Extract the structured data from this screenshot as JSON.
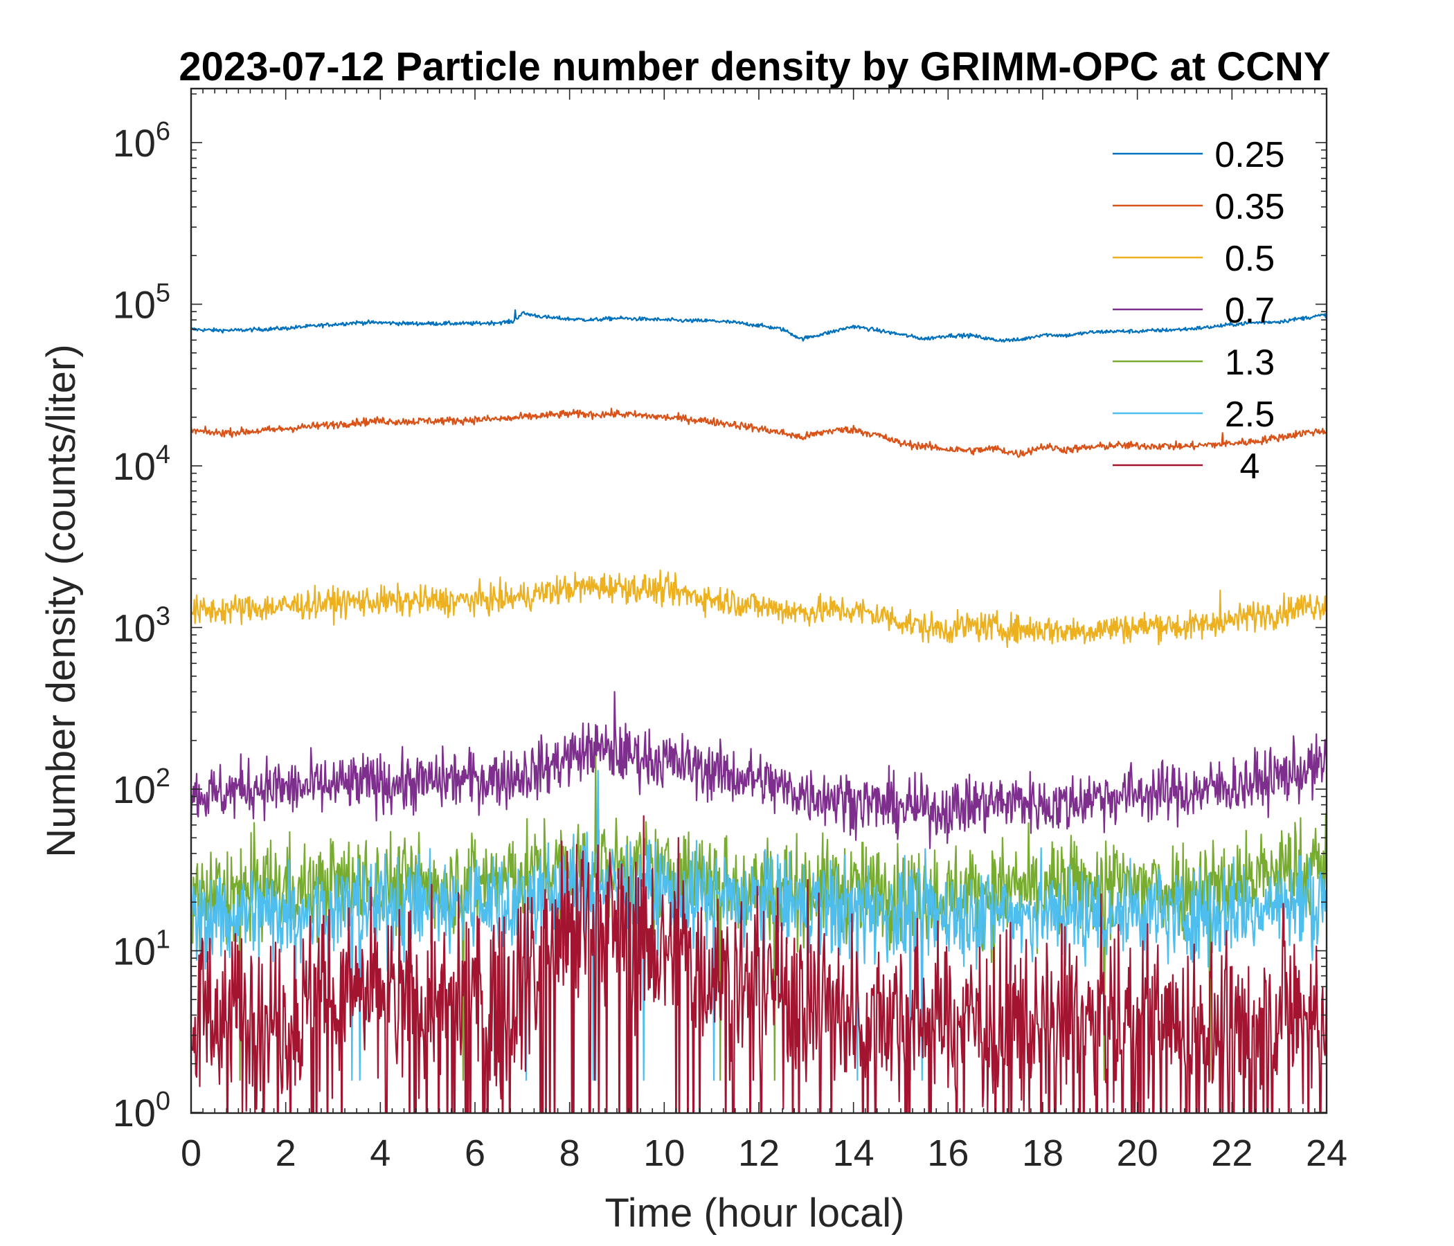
{
  "chart_data": {
    "type": "line",
    "title": "2023-07-12 Particle number density by GRIMM-OPC at CCNY",
    "xlabel": "Time (hour local)",
    "ylabel": "Number density (counts/liter)",
    "xlim": [
      0,
      24
    ],
    "ylim": [
      1,
      2000000
    ],
    "yscale": "log",
    "x_ticks": [
      0,
      2,
      4,
      6,
      8,
      10,
      12,
      14,
      16,
      18,
      20,
      22,
      24
    ],
    "y_ticks": [
      {
        "value": 1,
        "base": "10",
        "exp": "0"
      },
      {
        "value": 10,
        "base": "10",
        "exp": "1"
      },
      {
        "value": 100,
        "base": "10",
        "exp": "2"
      },
      {
        "value": 1000,
        "base": "10",
        "exp": "3"
      },
      {
        "value": 10000,
        "base": "10",
        "exp": "4"
      },
      {
        "value": 100000,
        "base": "10",
        "exp": "5"
      },
      {
        "value": 1000000,
        "base": "10",
        "exp": "6"
      }
    ],
    "grid": false,
    "legend_position": "top-right",
    "x": [
      0,
      0.5,
      1,
      1.5,
      2,
      2.5,
      3,
      3.5,
      4,
      4.5,
      5,
      5.5,
      6,
      6.5,
      6.8,
      7,
      7.5,
      8,
      8.5,
      9,
      9.5,
      10,
      10.5,
      11,
      11.5,
      12,
      12.5,
      12.9,
      13.5,
      14,
      14.5,
      15,
      15.5,
      16,
      16.5,
      17,
      17.5,
      18,
      18.5,
      19,
      19.5,
      20,
      20.5,
      21,
      21.5,
      22,
      22.5,
      23,
      23.5,
      24
    ],
    "series": [
      {
        "name": "0.25",
        "color": "#0072BD",
        "values": [
          70000,
          69000,
          69000,
          70000,
          71000,
          73000,
          75000,
          77000,
          77000,
          76000,
          76000,
          76000,
          76000,
          77000,
          78000,
          88000,
          83000,
          81000,
          80000,
          82000,
          81000,
          80000,
          79000,
          79000,
          77000,
          74000,
          70000,
          61000,
          67000,
          73000,
          69000,
          65000,
          61000,
          64000,
          64000,
          60000,
          60000,
          65000,
          64000,
          67000,
          68000,
          68000,
          69000,
          70000,
          72000,
          75000,
          77000,
          78000,
          82000,
          86000
        ]
      },
      {
        "name": "0.35",
        "color": "#D95319",
        "values": [
          16500,
          16000,
          16200,
          16500,
          17000,
          17500,
          18000,
          18600,
          19000,
          18800,
          19000,
          19000,
          19300,
          19500,
          19700,
          20000,
          20500,
          21000,
          20800,
          21000,
          20500,
          20000,
          19500,
          18800,
          18000,
          17000,
          16000,
          15000,
          16500,
          16800,
          15500,
          13800,
          13200,
          12700,
          12400,
          12800,
          11800,
          13200,
          12600,
          13000,
          13400,
          13300,
          13300,
          13200,
          13500,
          13800,
          14200,
          15000,
          16000,
          16500
        ]
      },
      {
        "name": "0.5",
        "color": "#EDB120",
        "values": [
          1250,
          1280,
          1300,
          1330,
          1350,
          1400,
          1420,
          1450,
          1450,
          1450,
          1460,
          1460,
          1480,
          1500,
          1520,
          1550,
          1650,
          1750,
          1780,
          1800,
          1750,
          1700,
          1600,
          1500,
          1450,
          1350,
          1300,
          1250,
          1280,
          1270,
          1200,
          1100,
          1000,
          980,
          1020,
          1000,
          970,
          980,
          950,
          960,
          1000,
          1000,
          1050,
          1000,
          1050,
          1100,
          1200,
          1250,
          1350,
          1400
        ]
      },
      {
        "name": "0.7",
        "color": "#7E2F8E",
        "values": [
          95,
          92,
          100,
          105,
          100,
          102,
          105,
          108,
          110,
          108,
          110,
          115,
          115,
          118,
          120,
          125,
          135,
          160,
          175,
          165,
          160,
          150,
          140,
          130,
          120,
          115,
          100,
          95,
          90,
          85,
          80,
          78,
          75,
          75,
          80,
          82,
          85,
          80,
          80,
          90,
          90,
          95,
          95,
          95,
          100,
          105,
          110,
          120,
          130,
          140
        ]
      },
      {
        "name": "1.3",
        "color": "#77AC30",
        "values": [
          22,
          22,
          23,
          25,
          25,
          24,
          25,
          26,
          26,
          26,
          26,
          27,
          27,
          28,
          28,
          29,
          30,
          32,
          33,
          32,
          31,
          29,
          28,
          27,
          26,
          25,
          25,
          24,
          24,
          24,
          23,
          23,
          22,
          22,
          23,
          23,
          24,
          24,
          24,
          25,
          25,
          25,
          25,
          25,
          26,
          27,
          28,
          30,
          32,
          34
        ]
      },
      {
        "name": "2.5",
        "color": "#4DBEEE",
        "values": [
          15,
          16,
          17,
          17,
          18,
          18,
          18,
          19,
          19,
          19,
          19,
          19,
          20,
          20,
          20,
          21,
          22,
          24,
          26,
          25,
          24,
          23,
          22,
          21,
          20,
          20,
          19,
          19,
          18,
          18,
          18,
          17,
          17,
          17,
          17,
          17,
          17,
          17,
          17,
          17,
          17,
          17,
          17,
          17,
          17,
          18,
          18,
          19,
          20,
          20
        ]
      },
      {
        "name": "4",
        "color": "#A2142F",
        "values": [
          4,
          4,
          4,
          4.5,
          4.5,
          4.5,
          5,
          5,
          5,
          5,
          5,
          5,
          5,
          5,
          6,
          7,
          9,
          13,
          16,
          14,
          12,
          10,
          9,
          8,
          7,
          6,
          6,
          5,
          5,
          4.5,
          4.5,
          4,
          4,
          4,
          3.8,
          3.8,
          3.8,
          3.5,
          3.5,
          3.5,
          3.5,
          3.5,
          3.5,
          3.5,
          3.5,
          3.5,
          3.5,
          3.8,
          4,
          4
        ]
      }
    ],
    "spikes": [
      {
        "series": "0.7",
        "x": 8.95,
        "y": 400
      },
      {
        "series": "0.7",
        "x": 8.55,
        "y": 250
      },
      {
        "series": "2.5",
        "x": 8.6,
        "y": 130
      },
      {
        "series": "1.3",
        "x": 8.55,
        "y": 160
      },
      {
        "series": "4",
        "x": 8.6,
        "y": 45
      },
      {
        "series": "4",
        "x": 10.3,
        "y": 50
      },
      {
        "series": "0.5",
        "x": 21.75,
        "y": 1700
      },
      {
        "series": "0.35",
        "x": 21.8,
        "y": 16000
      },
      {
        "series": "0.25",
        "x": 6.85,
        "y": 92000
      }
    ]
  }
}
